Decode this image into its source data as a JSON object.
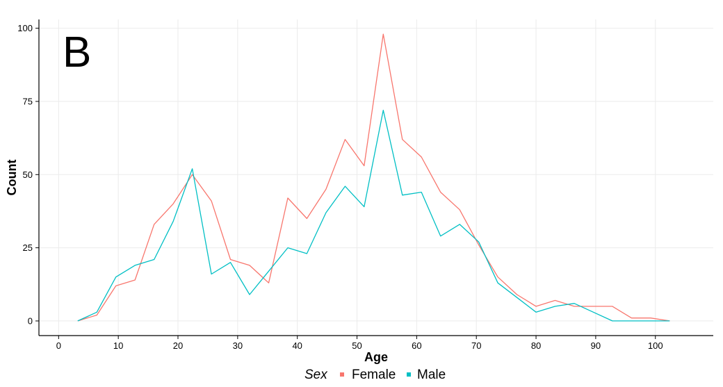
{
  "chart_data": {
    "type": "line",
    "panel_tag": "B",
    "title": "",
    "xlabel": "Age",
    "ylabel": "Count",
    "xlim": [
      -3.3,
      109.7
    ],
    "ylim": [
      -5,
      103
    ],
    "x_ticks": [
      0,
      10,
      20,
      30,
      40,
      50,
      60,
      70,
      80,
      90,
      100
    ],
    "y_ticks": [
      0,
      25,
      50,
      75,
      100
    ],
    "grid": true,
    "legend": {
      "title": "Sex",
      "position": "bottom"
    },
    "series": [
      {
        "name": "Female",
        "color": "#F8766D",
        "x": [
          3.2,
          6.4,
          9.6,
          12.8,
          16,
          19.2,
          22.4,
          25.6,
          28.8,
          32,
          35.2,
          38.4,
          41.6,
          44.8,
          48,
          51.2,
          54.4,
          57.6,
          60.8,
          64,
          67.2,
          70.4,
          73.6,
          76.8,
          80,
          83.2,
          86.4,
          89.6,
          92.8,
          96,
          99.2,
          102.4
        ],
        "values": [
          0,
          2,
          12,
          14,
          33,
          40,
          50,
          41,
          21,
          19,
          13,
          42,
          35,
          45,
          62,
          53,
          98,
          62,
          56,
          44,
          38,
          26,
          15,
          9,
          5,
          7,
          5,
          5,
          5,
          1,
          1,
          0
        ]
      },
      {
        "name": "Male",
        "color": "#00BFC4",
        "x": [
          3.2,
          6.4,
          9.6,
          12.8,
          16,
          19.2,
          22.4,
          25.6,
          28.8,
          32,
          35.2,
          38.4,
          41.6,
          44.8,
          48,
          51.2,
          54.4,
          57.6,
          60.8,
          64,
          67.2,
          70.4,
          73.6,
          76.8,
          80,
          83.2,
          86.4,
          89.6,
          92.8,
          96,
          99.2,
          102.4
        ],
        "values": [
          0,
          3,
          15,
          19,
          21,
          34,
          52,
          16,
          20,
          9,
          17,
          25,
          23,
          37,
          46,
          39,
          72,
          43,
          44,
          29,
          33,
          27,
          13,
          8,
          3,
          5,
          6,
          3,
          0,
          0,
          0,
          0
        ]
      }
    ]
  }
}
